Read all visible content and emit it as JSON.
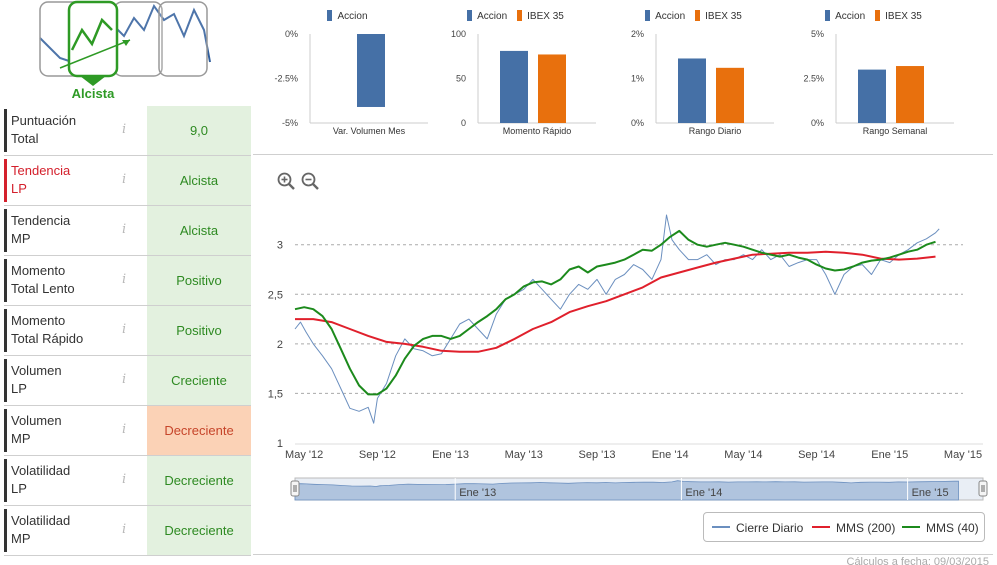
{
  "trend": {
    "label": "Alcista",
    "colors": {
      "active": "#2e9a25",
      "inactive": "#2f5d9c",
      "frame": "#999999"
    }
  },
  "indicators": [
    {
      "name_line1": "Puntuación",
      "name_line2": "Total",
      "value": "9,0",
      "status": "ok",
      "highlight": false
    },
    {
      "name_line1": "Tendencia",
      "name_line2": "LP",
      "value": "Alcista",
      "status": "ok",
      "highlight": true
    },
    {
      "name_line1": "Tendencia",
      "name_line2": "MP",
      "value": "Alcista",
      "status": "ok",
      "highlight": false
    },
    {
      "name_line1": "Momento",
      "name_line2": "Total Lento",
      "value": "Positivo",
      "status": "ok",
      "highlight": false
    },
    {
      "name_line1": "Momento",
      "name_line2": "Total Rápido",
      "value": "Positivo",
      "status": "ok",
      "highlight": false
    },
    {
      "name_line1": "Volumen",
      "name_line2": "LP",
      "value": "Creciente",
      "status": "ok",
      "highlight": false
    },
    {
      "name_line1": "Volumen",
      "name_line2": "MP",
      "value": "Decreciente",
      "status": "warn",
      "highlight": false
    },
    {
      "name_line1": "Volatilidad",
      "name_line2": "LP",
      "value": "Decreciente",
      "status": "ok",
      "highlight": false
    },
    {
      "name_line1": "Volatilidad",
      "name_line2": "MP",
      "value": "Decreciente",
      "status": "ok",
      "highlight": false
    }
  ],
  "info_glyph": "i",
  "colors": {
    "accion": "#4570a6",
    "ibex": "#e8700d",
    "cierre": "#6b8fbf",
    "mms200": "#e0202c",
    "mms40": "#1c8a1c",
    "navigator": "#b0c4de"
  },
  "mini_charts": [
    {
      "series_labels": [
        "Accion"
      ],
      "yticks": [
        "0%",
        "-2.5%",
        "-5%"
      ],
      "ymin": -5,
      "ymax": 0,
      "values": [
        -4.1
      ],
      "xlabel": "Var. Volumen Mes"
    },
    {
      "series_labels": [
        "Accion",
        "IBEX 35"
      ],
      "yticks": [
        "100",
        "50",
        "0"
      ],
      "ymin": 0,
      "ymax": 100,
      "values": [
        81,
        77
      ],
      "xlabel": "Momento Rápido"
    },
    {
      "series_labels": [
        "Accion",
        "IBEX 35"
      ],
      "yticks": [
        "2%",
        "1%",
        "0%"
      ],
      "ymin": 0,
      "ymax": 2,
      "values": [
        1.45,
        1.24
      ],
      "xlabel": "Rango Diario"
    },
    {
      "series_labels": [
        "Accion",
        "IBEX 35"
      ],
      "yticks": [
        "5%",
        "2.5%",
        "0%"
      ],
      "ymin": 0,
      "ymax": 5,
      "values": [
        3.0,
        3.2
      ],
      "xlabel": "Rango Semanal"
    }
  ],
  "chart_data": {
    "type": "line",
    "ylim": [
      1,
      3.3
    ],
    "yticks": [
      "3",
      "2,5",
      "2",
      "1,5",
      "1"
    ],
    "ytick_values": [
      3,
      2.5,
      2,
      1.5,
      1
    ],
    "x_range_months": [
      0,
      36.5
    ],
    "xticks": [
      {
        "label": "May '12",
        "m": 0.5
      },
      {
        "label": "Sep '12",
        "m": 4.5
      },
      {
        "label": "Ene '13",
        "m": 8.5
      },
      {
        "label": "May '13",
        "m": 12.5
      },
      {
        "label": "Sep '13",
        "m": 16.5
      },
      {
        "label": "Ene '14",
        "m": 20.5
      },
      {
        "label": "May '14",
        "m": 24.5
      },
      {
        "label": "Sep '14",
        "m": 28.5
      },
      {
        "label": "Ene '15",
        "m": 32.5
      },
      {
        "label": "May '15",
        "m": 36.5
      }
    ],
    "series": [
      {
        "name": "Cierre Diario",
        "points": [
          [
            0,
            2.15
          ],
          [
            0.3,
            2.22
          ],
          [
            0.6,
            2.12
          ],
          [
            1,
            2.0
          ],
          [
            1.5,
            1.88
          ],
          [
            2,
            1.75
          ],
          [
            2.5,
            1.55
          ],
          [
            3,
            1.35
          ],
          [
            3.5,
            1.32
          ],
          [
            4,
            1.36
          ],
          [
            4.3,
            1.2
          ],
          [
            4.5,
            1.45
          ],
          [
            5,
            1.6
          ],
          [
            5.5,
            1.88
          ],
          [
            6,
            2.05
          ],
          [
            6.5,
            1.95
          ],
          [
            7,
            1.93
          ],
          [
            7.5,
            1.88
          ],
          [
            8,
            1.9
          ],
          [
            8.5,
            2.05
          ],
          [
            9,
            2.2
          ],
          [
            9.5,
            2.25
          ],
          [
            10,
            2.15
          ],
          [
            10.5,
            2.05
          ],
          [
            11,
            2.3
          ],
          [
            11.5,
            2.45
          ],
          [
            12,
            2.5
          ],
          [
            12.5,
            2.55
          ],
          [
            13,
            2.65
          ],
          [
            13.5,
            2.55
          ],
          [
            14,
            2.45
          ],
          [
            14.5,
            2.35
          ],
          [
            15,
            2.5
          ],
          [
            15.5,
            2.6
          ],
          [
            16,
            2.55
          ],
          [
            16.5,
            2.65
          ],
          [
            17,
            2.5
          ],
          [
            17.5,
            2.65
          ],
          [
            18,
            2.7
          ],
          [
            18.5,
            2.8
          ],
          [
            19,
            2.75
          ],
          [
            19.5,
            2.65
          ],
          [
            20,
            2.85
          ],
          [
            20.3,
            3.3
          ],
          [
            20.6,
            3.05
          ],
          [
            21,
            2.95
          ],
          [
            21.5,
            2.85
          ],
          [
            22,
            2.85
          ],
          [
            22.5,
            2.9
          ],
          [
            23,
            2.8
          ],
          [
            23.5,
            2.85
          ],
          [
            24,
            2.85
          ],
          [
            24.5,
            2.9
          ],
          [
            25,
            2.85
          ],
          [
            25.5,
            2.95
          ],
          [
            26,
            2.85
          ],
          [
            26.5,
            2.9
          ],
          [
            27,
            2.78
          ],
          [
            27.5,
            2.82
          ],
          [
            28,
            2.85
          ],
          [
            28.5,
            2.85
          ],
          [
            29,
            2.7
          ],
          [
            29.5,
            2.5
          ],
          [
            30,
            2.7
          ],
          [
            30.5,
            2.78
          ],
          [
            31,
            2.8
          ],
          [
            31.5,
            2.7
          ],
          [
            32,
            2.85
          ],
          [
            32.5,
            2.82
          ],
          [
            33,
            2.9
          ],
          [
            33.5,
            2.95
          ],
          [
            34,
            3.02
          ],
          [
            34.5,
            3.06
          ],
          [
            35,
            3.12
          ],
          [
            35.2,
            3.16
          ]
        ]
      },
      {
        "name": "MMS (200)",
        "points": [
          [
            0,
            2.25
          ],
          [
            1,
            2.25
          ],
          [
            2,
            2.22
          ],
          [
            3,
            2.15
          ],
          [
            4,
            2.08
          ],
          [
            5,
            2.02
          ],
          [
            6,
            2.0
          ],
          [
            7,
            1.97
          ],
          [
            8,
            1.93
          ],
          [
            9,
            1.92
          ],
          [
            10,
            1.92
          ],
          [
            11,
            1.96
          ],
          [
            12,
            2.05
          ],
          [
            13,
            2.15
          ],
          [
            14,
            2.22
          ],
          [
            15,
            2.32
          ],
          [
            16,
            2.38
          ],
          [
            17,
            2.43
          ],
          [
            18,
            2.5
          ],
          [
            19,
            2.57
          ],
          [
            20,
            2.67
          ],
          [
            21,
            2.72
          ],
          [
            22,
            2.77
          ],
          [
            23,
            2.82
          ],
          [
            24,
            2.86
          ],
          [
            25,
            2.9
          ],
          [
            26,
            2.91
          ],
          [
            27,
            2.92
          ],
          [
            28,
            2.92
          ],
          [
            29,
            2.93
          ],
          [
            30,
            2.92
          ],
          [
            31,
            2.9
          ],
          [
            32,
            2.86
          ],
          [
            33,
            2.85
          ],
          [
            34,
            2.86
          ],
          [
            35,
            2.88
          ]
        ]
      },
      {
        "name": "MMS (40)",
        "points": [
          [
            0,
            2.35
          ],
          [
            0.5,
            2.37
          ],
          [
            1,
            2.35
          ],
          [
            1.5,
            2.28
          ],
          [
            2,
            2.15
          ],
          [
            2.5,
            1.95
          ],
          [
            3,
            1.75
          ],
          [
            3.5,
            1.58
          ],
          [
            4,
            1.49
          ],
          [
            4.5,
            1.49
          ],
          [
            5,
            1.55
          ],
          [
            5.5,
            1.68
          ],
          [
            6,
            1.85
          ],
          [
            6.5,
            1.98
          ],
          [
            7,
            2.05
          ],
          [
            7.5,
            2.08
          ],
          [
            8,
            2.08
          ],
          [
            8.5,
            2.05
          ],
          [
            9,
            2.08
          ],
          [
            9.5,
            2.15
          ],
          [
            10,
            2.22
          ],
          [
            10.5,
            2.28
          ],
          [
            11,
            2.35
          ],
          [
            11.5,
            2.45
          ],
          [
            12,
            2.5
          ],
          [
            12.5,
            2.58
          ],
          [
            13,
            2.62
          ],
          [
            13.5,
            2.63
          ],
          [
            14,
            2.6
          ],
          [
            14.5,
            2.65
          ],
          [
            15,
            2.75
          ],
          [
            15.5,
            2.78
          ],
          [
            16,
            2.72
          ],
          [
            16.5,
            2.78
          ],
          [
            17,
            2.8
          ],
          [
            17.5,
            2.82
          ],
          [
            18,
            2.85
          ],
          [
            18.5,
            2.9
          ],
          [
            19,
            2.95
          ],
          [
            19.5,
            2.94
          ],
          [
            20,
            3.0
          ],
          [
            20.5,
            3.08
          ],
          [
            21,
            3.14
          ],
          [
            21.5,
            3.05
          ],
          [
            22,
            3.0
          ],
          [
            22.5,
            2.98
          ],
          [
            23,
            3.0
          ],
          [
            23.5,
            3.02
          ],
          [
            24,
            3.0
          ],
          [
            24.5,
            2.98
          ],
          [
            25,
            2.95
          ],
          [
            25.5,
            2.92
          ],
          [
            26,
            2.9
          ],
          [
            26.5,
            2.88
          ],
          [
            27,
            2.9
          ],
          [
            27.5,
            2.87
          ],
          [
            28,
            2.85
          ],
          [
            28.5,
            2.8
          ],
          [
            29,
            2.76
          ],
          [
            29.5,
            2.74
          ],
          [
            30,
            2.75
          ],
          [
            30.5,
            2.78
          ],
          [
            31,
            2.82
          ],
          [
            31.5,
            2.84
          ],
          [
            32,
            2.85
          ],
          [
            32.5,
            2.87
          ],
          [
            33,
            2.9
          ],
          [
            33.5,
            2.93
          ],
          [
            34,
            2.95
          ],
          [
            34.5,
            3.0
          ],
          [
            35,
            3.03
          ]
        ]
      }
    ],
    "navigator_labels": [
      {
        "label": "Ene '13",
        "m": 8.5
      },
      {
        "label": "Ene '14",
        "m": 20.5
      },
      {
        "label": "Ene '15",
        "m": 32.5
      }
    ]
  },
  "legend": {
    "items": [
      "Cierre Diario",
      "MMS (200)",
      "MMS (40)"
    ]
  },
  "footer": "Cálculos a fecha: 09/03/2015"
}
